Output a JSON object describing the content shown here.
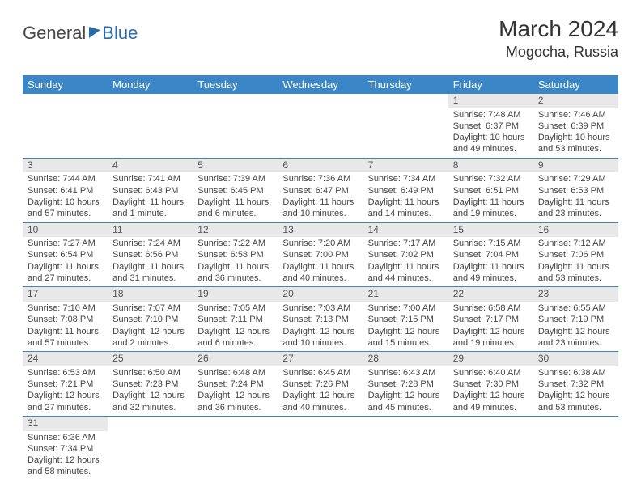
{
  "logo": {
    "part1": "General",
    "part2": "Blue"
  },
  "title": "March 2024",
  "location": "Mogocha, Russia",
  "colors": {
    "header_bg": "#3b86c6",
    "header_text": "#ffffff",
    "daynum_bg": "#e8e8e8",
    "row_border": "#3b86c6",
    "body_text": "#444444"
  },
  "weekdays": [
    "Sunday",
    "Monday",
    "Tuesday",
    "Wednesday",
    "Thursday",
    "Friday",
    "Saturday"
  ],
  "weeks": [
    [
      null,
      null,
      null,
      null,
      null,
      {
        "n": "1",
        "sr": "Sunrise: 7:48 AM",
        "ss": "Sunset: 6:37 PM",
        "dl1": "Daylight: 10 hours",
        "dl2": "and 49 minutes."
      },
      {
        "n": "2",
        "sr": "Sunrise: 7:46 AM",
        "ss": "Sunset: 6:39 PM",
        "dl1": "Daylight: 10 hours",
        "dl2": "and 53 minutes."
      }
    ],
    [
      {
        "n": "3",
        "sr": "Sunrise: 7:44 AM",
        "ss": "Sunset: 6:41 PM",
        "dl1": "Daylight: 10 hours",
        "dl2": "and 57 minutes."
      },
      {
        "n": "4",
        "sr": "Sunrise: 7:41 AM",
        "ss": "Sunset: 6:43 PM",
        "dl1": "Daylight: 11 hours",
        "dl2": "and 1 minute."
      },
      {
        "n": "5",
        "sr": "Sunrise: 7:39 AM",
        "ss": "Sunset: 6:45 PM",
        "dl1": "Daylight: 11 hours",
        "dl2": "and 6 minutes."
      },
      {
        "n": "6",
        "sr": "Sunrise: 7:36 AM",
        "ss": "Sunset: 6:47 PM",
        "dl1": "Daylight: 11 hours",
        "dl2": "and 10 minutes."
      },
      {
        "n": "7",
        "sr": "Sunrise: 7:34 AM",
        "ss": "Sunset: 6:49 PM",
        "dl1": "Daylight: 11 hours",
        "dl2": "and 14 minutes."
      },
      {
        "n": "8",
        "sr": "Sunrise: 7:32 AM",
        "ss": "Sunset: 6:51 PM",
        "dl1": "Daylight: 11 hours",
        "dl2": "and 19 minutes."
      },
      {
        "n": "9",
        "sr": "Sunrise: 7:29 AM",
        "ss": "Sunset: 6:53 PM",
        "dl1": "Daylight: 11 hours",
        "dl2": "and 23 minutes."
      }
    ],
    [
      {
        "n": "10",
        "sr": "Sunrise: 7:27 AM",
        "ss": "Sunset: 6:54 PM",
        "dl1": "Daylight: 11 hours",
        "dl2": "and 27 minutes."
      },
      {
        "n": "11",
        "sr": "Sunrise: 7:24 AM",
        "ss": "Sunset: 6:56 PM",
        "dl1": "Daylight: 11 hours",
        "dl2": "and 31 minutes."
      },
      {
        "n": "12",
        "sr": "Sunrise: 7:22 AM",
        "ss": "Sunset: 6:58 PM",
        "dl1": "Daylight: 11 hours",
        "dl2": "and 36 minutes."
      },
      {
        "n": "13",
        "sr": "Sunrise: 7:20 AM",
        "ss": "Sunset: 7:00 PM",
        "dl1": "Daylight: 11 hours",
        "dl2": "and 40 minutes."
      },
      {
        "n": "14",
        "sr": "Sunrise: 7:17 AM",
        "ss": "Sunset: 7:02 PM",
        "dl1": "Daylight: 11 hours",
        "dl2": "and 44 minutes."
      },
      {
        "n": "15",
        "sr": "Sunrise: 7:15 AM",
        "ss": "Sunset: 7:04 PM",
        "dl1": "Daylight: 11 hours",
        "dl2": "and 49 minutes."
      },
      {
        "n": "16",
        "sr": "Sunrise: 7:12 AM",
        "ss": "Sunset: 7:06 PM",
        "dl1": "Daylight: 11 hours",
        "dl2": "and 53 minutes."
      }
    ],
    [
      {
        "n": "17",
        "sr": "Sunrise: 7:10 AM",
        "ss": "Sunset: 7:08 PM",
        "dl1": "Daylight: 11 hours",
        "dl2": "and 57 minutes."
      },
      {
        "n": "18",
        "sr": "Sunrise: 7:07 AM",
        "ss": "Sunset: 7:10 PM",
        "dl1": "Daylight: 12 hours",
        "dl2": "and 2 minutes."
      },
      {
        "n": "19",
        "sr": "Sunrise: 7:05 AM",
        "ss": "Sunset: 7:11 PM",
        "dl1": "Daylight: 12 hours",
        "dl2": "and 6 minutes."
      },
      {
        "n": "20",
        "sr": "Sunrise: 7:03 AM",
        "ss": "Sunset: 7:13 PM",
        "dl1": "Daylight: 12 hours",
        "dl2": "and 10 minutes."
      },
      {
        "n": "21",
        "sr": "Sunrise: 7:00 AM",
        "ss": "Sunset: 7:15 PM",
        "dl1": "Daylight: 12 hours",
        "dl2": "and 15 minutes."
      },
      {
        "n": "22",
        "sr": "Sunrise: 6:58 AM",
        "ss": "Sunset: 7:17 PM",
        "dl1": "Daylight: 12 hours",
        "dl2": "and 19 minutes."
      },
      {
        "n": "23",
        "sr": "Sunrise: 6:55 AM",
        "ss": "Sunset: 7:19 PM",
        "dl1": "Daylight: 12 hours",
        "dl2": "and 23 minutes."
      }
    ],
    [
      {
        "n": "24",
        "sr": "Sunrise: 6:53 AM",
        "ss": "Sunset: 7:21 PM",
        "dl1": "Daylight: 12 hours",
        "dl2": "and 27 minutes."
      },
      {
        "n": "25",
        "sr": "Sunrise: 6:50 AM",
        "ss": "Sunset: 7:23 PM",
        "dl1": "Daylight: 12 hours",
        "dl2": "and 32 minutes."
      },
      {
        "n": "26",
        "sr": "Sunrise: 6:48 AM",
        "ss": "Sunset: 7:24 PM",
        "dl1": "Daylight: 12 hours",
        "dl2": "and 36 minutes."
      },
      {
        "n": "27",
        "sr": "Sunrise: 6:45 AM",
        "ss": "Sunset: 7:26 PM",
        "dl1": "Daylight: 12 hours",
        "dl2": "and 40 minutes."
      },
      {
        "n": "28",
        "sr": "Sunrise: 6:43 AM",
        "ss": "Sunset: 7:28 PM",
        "dl1": "Daylight: 12 hours",
        "dl2": "and 45 minutes."
      },
      {
        "n": "29",
        "sr": "Sunrise: 6:40 AM",
        "ss": "Sunset: 7:30 PM",
        "dl1": "Daylight: 12 hours",
        "dl2": "and 49 minutes."
      },
      {
        "n": "30",
        "sr": "Sunrise: 6:38 AM",
        "ss": "Sunset: 7:32 PM",
        "dl1": "Daylight: 12 hours",
        "dl2": "and 53 minutes."
      }
    ],
    [
      {
        "n": "31",
        "sr": "Sunrise: 6:36 AM",
        "ss": "Sunset: 7:34 PM",
        "dl1": "Daylight: 12 hours",
        "dl2": "and 58 minutes."
      },
      null,
      null,
      null,
      null,
      null,
      null
    ]
  ]
}
